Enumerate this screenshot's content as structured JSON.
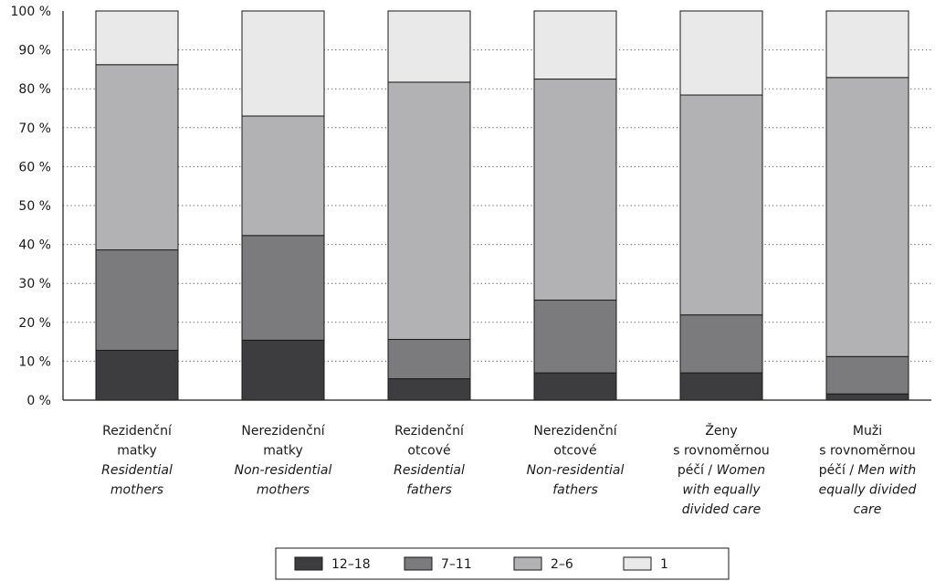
{
  "chart_data": {
    "type": "bar",
    "stacked": true,
    "percent": true,
    "categories": [
      "Rezidenční matky / Residential mothers",
      "Nerezidenční matky / Non-residential mothers",
      "Rezidenční otcové / Residential fathers",
      "Nerezidenční otcové / Non-residential fathers",
      "Ženy s rovnoměrnou péčí / Women with equally divided care",
      "Muži s rovnoměrnou péčí / Men with equally divided care"
    ],
    "category_lines": [
      [
        {
          "text": "Rezidenční",
          "italic": false
        },
        {
          "text": "matky",
          "italic": false
        },
        {
          "text": "Residential",
          "italic": true
        },
        {
          "text": "mothers",
          "italic": true
        }
      ],
      [
        {
          "text": "Nerezidenční",
          "italic": false
        },
        {
          "text": "matky",
          "italic": false
        },
        {
          "text": "Non-residential",
          "italic": true
        },
        {
          "text": "mothers",
          "italic": true
        }
      ],
      [
        {
          "text": "Rezidenční",
          "italic": false
        },
        {
          "text": "otcové",
          "italic": false
        },
        {
          "text": "Residential",
          "italic": true
        },
        {
          "text": "fathers",
          "italic": true
        }
      ],
      [
        {
          "text": "Nerezidenční",
          "italic": false
        },
        {
          "text": "otcové",
          "italic": false
        },
        {
          "text": "Non-residential",
          "italic": true
        },
        {
          "text": "fathers",
          "italic": true
        }
      ],
      [
        {
          "text": "Ženy",
          "italic": false
        },
        {
          "text": "s rovnoměrnou",
          "italic": false
        },
        {
          "parts": [
            {
              "text": "péčí / ",
              "italic": false
            },
            {
              "text": "Women",
              "italic": true
            }
          ]
        },
        {
          "text": "with equally",
          "italic": true
        },
        {
          "text": "divided care",
          "italic": true
        }
      ],
      [
        {
          "text": "Muži",
          "italic": false
        },
        {
          "text": "s rovnoměrnou",
          "italic": false
        },
        {
          "parts": [
            {
              "text": "péčí / ",
              "italic": false
            },
            {
              "text": "Men with",
              "italic": true
            }
          ]
        },
        {
          "text": "equally divided",
          "italic": true
        },
        {
          "text": "care",
          "italic": true
        }
      ]
    ],
    "series": [
      {
        "name": "12–18",
        "color": "#3d3d3f",
        "values": [
          12.8,
          15.4,
          5.5,
          7.0,
          7.0,
          1.6
        ]
      },
      {
        "name": "7–11",
        "color": "#7b7b7d",
        "values": [
          25.8,
          26.9,
          10.1,
          18.7,
          14.9,
          9.6
        ]
      },
      {
        "name": "2–6",
        "color": "#b2b2b4",
        "values": [
          47.6,
          30.7,
          66.1,
          56.8,
          56.5,
          71.7
        ]
      },
      {
        "name": "1",
        "color": "#e9e9ea",
        "values": [
          13.8,
          27.0,
          18.3,
          17.5,
          21.6,
          17.1
        ]
      }
    ],
    "yticks": [
      "0 %",
      "10 %",
      "20 %",
      "30 %",
      "40 %",
      "50 %",
      "60 %",
      "70 %",
      "80 %",
      "90 %",
      "100 %"
    ],
    "ylim": [
      0,
      100
    ],
    "grid": "dotted horizontal",
    "legend_position": "bottom-center",
    "title": "",
    "xlabel": "",
    "ylabel": ""
  }
}
